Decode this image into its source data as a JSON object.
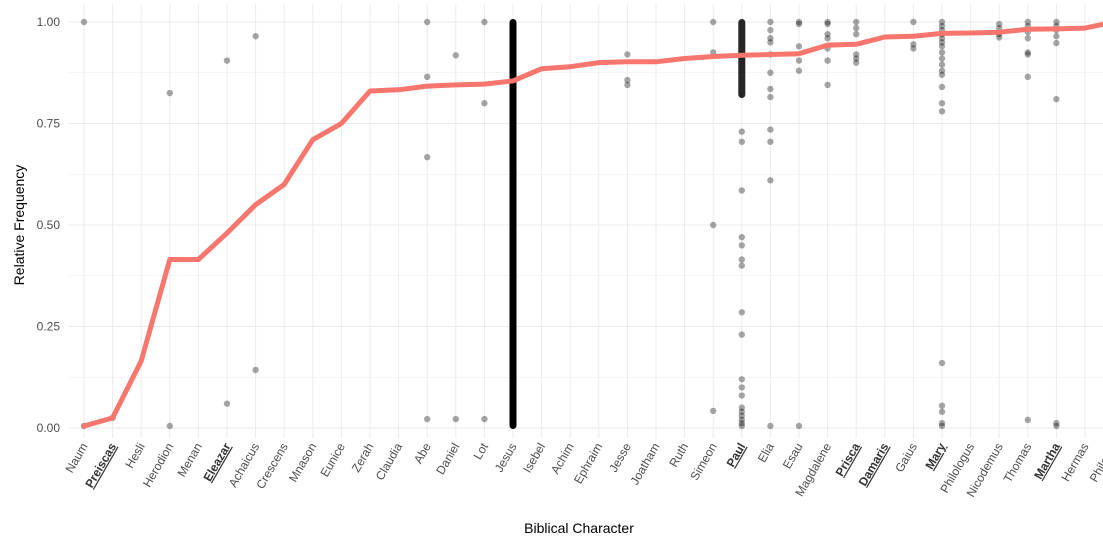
{
  "chart_data": {
    "type": "scatter",
    "title": "",
    "xlabel": "Biblical Character",
    "ylabel": "Relative Frequency",
    "ylim": [
      0,
      1
    ],
    "y_ticks": [
      "0.00",
      "0.25",
      "0.50",
      "0.75",
      "1.00"
    ],
    "y_tick_values": [
      0,
      0.25,
      0.5,
      0.75,
      1
    ],
    "grid": true,
    "legend": "none",
    "colors": {
      "line": "#f8766d",
      "points": "#000000",
      "grid": "#ebebeb"
    },
    "categories": [
      "Naum",
      "Preiscas",
      "Hesli",
      "Herodion",
      "Menan",
      "Eleazar",
      "Achaicus",
      "Crescens",
      "Mnason",
      "Eunice",
      "Zerah",
      "Claudia",
      "Abe",
      "Daniel",
      "Lot",
      "Jesus",
      "Isebel",
      "Achim",
      "Ephraim",
      "Jesse",
      "Joatham",
      "Ruth",
      "Simeon",
      "Paul",
      "Elia",
      "Esau",
      "Magdalene",
      "Prisca",
      "Damaris",
      "Gaius",
      "Mary",
      "Philologus",
      "Nicodemus",
      "Thomas",
      "Martha",
      "Hermas",
      "Philetus"
    ],
    "bold_categories": [
      "Preiscas",
      "Eleazar",
      "Paul",
      "Prisca",
      "Damaris",
      "Mary",
      "Martha"
    ],
    "line_series": {
      "values": [
        0.005,
        0.025,
        0.165,
        0.415,
        0.415,
        0.48,
        0.55,
        0.6,
        0.71,
        0.75,
        0.83,
        0.833,
        0.842,
        0.845,
        0.847,
        0.855,
        0.885,
        0.89,
        0.9,
        0.902,
        0.902,
        0.91,
        0.915,
        0.918,
        0.92,
        0.922,
        0.943,
        0.945,
        0.963,
        0.965,
        0.972,
        0.973,
        0.975,
        0.982,
        0.983,
        0.985,
        1.0
      ]
    },
    "point_series": {
      "points": [
        {
          "c": "Naum",
          "y": 1.0
        },
        {
          "c": "Naum",
          "y": 0.005
        },
        {
          "c": "Preiscas",
          "y": 0.025
        },
        {
          "c": "Herodion",
          "y": 0.825
        },
        {
          "c": "Herodion",
          "y": 0.005
        },
        {
          "c": "Eleazar",
          "y": 0.905
        },
        {
          "c": "Eleazar",
          "y": 0.06
        },
        {
          "c": "Achaicus",
          "y": 0.965
        },
        {
          "c": "Achaicus",
          "y": 0.143
        },
        {
          "c": "Abe",
          "y": 1.0
        },
        {
          "c": "Abe",
          "y": 0.865
        },
        {
          "c": "Abe",
          "y": 0.667
        },
        {
          "c": "Abe",
          "y": 0.022
        },
        {
          "c": "Daniel",
          "y": 0.918
        },
        {
          "c": "Daniel",
          "y": 0.022
        },
        {
          "c": "Lot",
          "y": 1.0
        },
        {
          "c": "Lot",
          "y": 0.8
        },
        {
          "c": "Lot",
          "y": 0.022
        },
        {
          "c": "Jesse",
          "y": 0.92
        },
        {
          "c": "Jesse",
          "y": 0.857
        },
        {
          "c": "Jesse",
          "y": 0.845
        },
        {
          "c": "Simeon",
          "y": 1.0
        },
        {
          "c": "Simeon",
          "y": 0.925
        },
        {
          "c": "Simeon",
          "y": 0.5
        },
        {
          "c": "Simeon",
          "y": 0.042
        },
        {
          "c": "Elia",
          "y": 1.0
        },
        {
          "c": "Elia",
          "y": 0.98
        },
        {
          "c": "Elia",
          "y": 0.96
        },
        {
          "c": "Elia",
          "y": 0.95
        },
        {
          "c": "Elia",
          "y": 0.92
        },
        {
          "c": "Elia",
          "y": 0.875
        },
        {
          "c": "Elia",
          "y": 0.835
        },
        {
          "c": "Elia",
          "y": 0.815
        },
        {
          "c": "Elia",
          "y": 0.735
        },
        {
          "c": "Elia",
          "y": 0.705
        },
        {
          "c": "Elia",
          "y": 0.61
        },
        {
          "c": "Elia",
          "y": 0.005
        },
        {
          "c": "Esau",
          "y": 1.0
        },
        {
          "c": "Esau",
          "y": 0.995
        },
        {
          "c": "Esau",
          "y": 0.94
        },
        {
          "c": "Esau",
          "y": 0.905
        },
        {
          "c": "Esau",
          "y": 0.88
        },
        {
          "c": "Esau",
          "y": 0.005
        },
        {
          "c": "Magdalene",
          "y": 1.0
        },
        {
          "c": "Magdalene",
          "y": 0.995
        },
        {
          "c": "Magdalene",
          "y": 0.97
        },
        {
          "c": "Magdalene",
          "y": 0.96
        },
        {
          "c": "Magdalene",
          "y": 0.935
        },
        {
          "c": "Magdalene",
          "y": 0.905
        },
        {
          "c": "Magdalene",
          "y": 0.845
        },
        {
          "c": "Prisca",
          "y": 1.0
        },
        {
          "c": "Prisca",
          "y": 0.985
        },
        {
          "c": "Prisca",
          "y": 0.97
        },
        {
          "c": "Prisca",
          "y": 0.92
        },
        {
          "c": "Prisca",
          "y": 0.91
        },
        {
          "c": "Prisca",
          "y": 0.9
        },
        {
          "c": "Gaius",
          "y": 1.0
        },
        {
          "c": "Gaius",
          "y": 0.945
        },
        {
          "c": "Gaius",
          "y": 0.935
        },
        {
          "c": "Mary",
          "y": 1.0
        },
        {
          "c": "Mary",
          "y": 0.99
        },
        {
          "c": "Mary",
          "y": 0.98
        },
        {
          "c": "Mary",
          "y": 0.97
        },
        {
          "c": "Mary",
          "y": 0.96
        },
        {
          "c": "Mary",
          "y": 0.95
        },
        {
          "c": "Mary",
          "y": 0.94
        },
        {
          "c": "Mary",
          "y": 0.925
        },
        {
          "c": "Mary",
          "y": 0.91
        },
        {
          "c": "Mary",
          "y": 0.895
        },
        {
          "c": "Mary",
          "y": 0.88
        },
        {
          "c": "Mary",
          "y": 0.87
        },
        {
          "c": "Mary",
          "y": 0.84
        },
        {
          "c": "Mary",
          "y": 0.8
        },
        {
          "c": "Mary",
          "y": 0.78
        },
        {
          "c": "Mary",
          "y": 0.16
        },
        {
          "c": "Mary",
          "y": 0.055
        },
        {
          "c": "Mary",
          "y": 0.04
        },
        {
          "c": "Mary",
          "y": 0.012
        },
        {
          "c": "Mary",
          "y": 0.005
        },
        {
          "c": "Nicodemus",
          "y": 0.995
        },
        {
          "c": "Nicodemus",
          "y": 0.985
        },
        {
          "c": "Nicodemus",
          "y": 0.97
        },
        {
          "c": "Nicodemus",
          "y": 0.962
        },
        {
          "c": "Thomas",
          "y": 1.0
        },
        {
          "c": "Thomas",
          "y": 0.99
        },
        {
          "c": "Thomas",
          "y": 0.975
        },
        {
          "c": "Thomas",
          "y": 0.96
        },
        {
          "c": "Thomas",
          "y": 0.925
        },
        {
          "c": "Thomas",
          "y": 0.92
        },
        {
          "c": "Thomas",
          "y": 0.865
        },
        {
          "c": "Thomas",
          "y": 0.02
        },
        {
          "c": "Martha",
          "y": 1.0
        },
        {
          "c": "Martha",
          "y": 0.99
        },
        {
          "c": "Martha",
          "y": 0.98
        },
        {
          "c": "Martha",
          "y": 0.965
        },
        {
          "c": "Martha",
          "y": 0.948
        },
        {
          "c": "Martha",
          "y": 0.81
        },
        {
          "c": "Martha",
          "y": 0.012
        },
        {
          "c": "Martha",
          "y": 0.005
        },
        {
          "c": "Philetus",
          "y": 1.0
        }
      ],
      "dense_columns": [
        {
          "c": "Jesus",
          "ymin": 0.005,
          "ymax": 1.0,
          "density": "very-high"
        },
        {
          "c": "Paul",
          "ymin": 0.005,
          "ymax": 1.0,
          "density": "high",
          "extra": [
            0.73,
            0.705,
            0.585,
            0.47,
            0.45,
            0.415,
            0.4,
            0.285,
            0.23,
            0.12,
            0.1,
            0.08,
            0.05,
            0.04,
            0.03,
            0.02,
            0.012,
            0.005
          ]
        }
      ]
    }
  }
}
